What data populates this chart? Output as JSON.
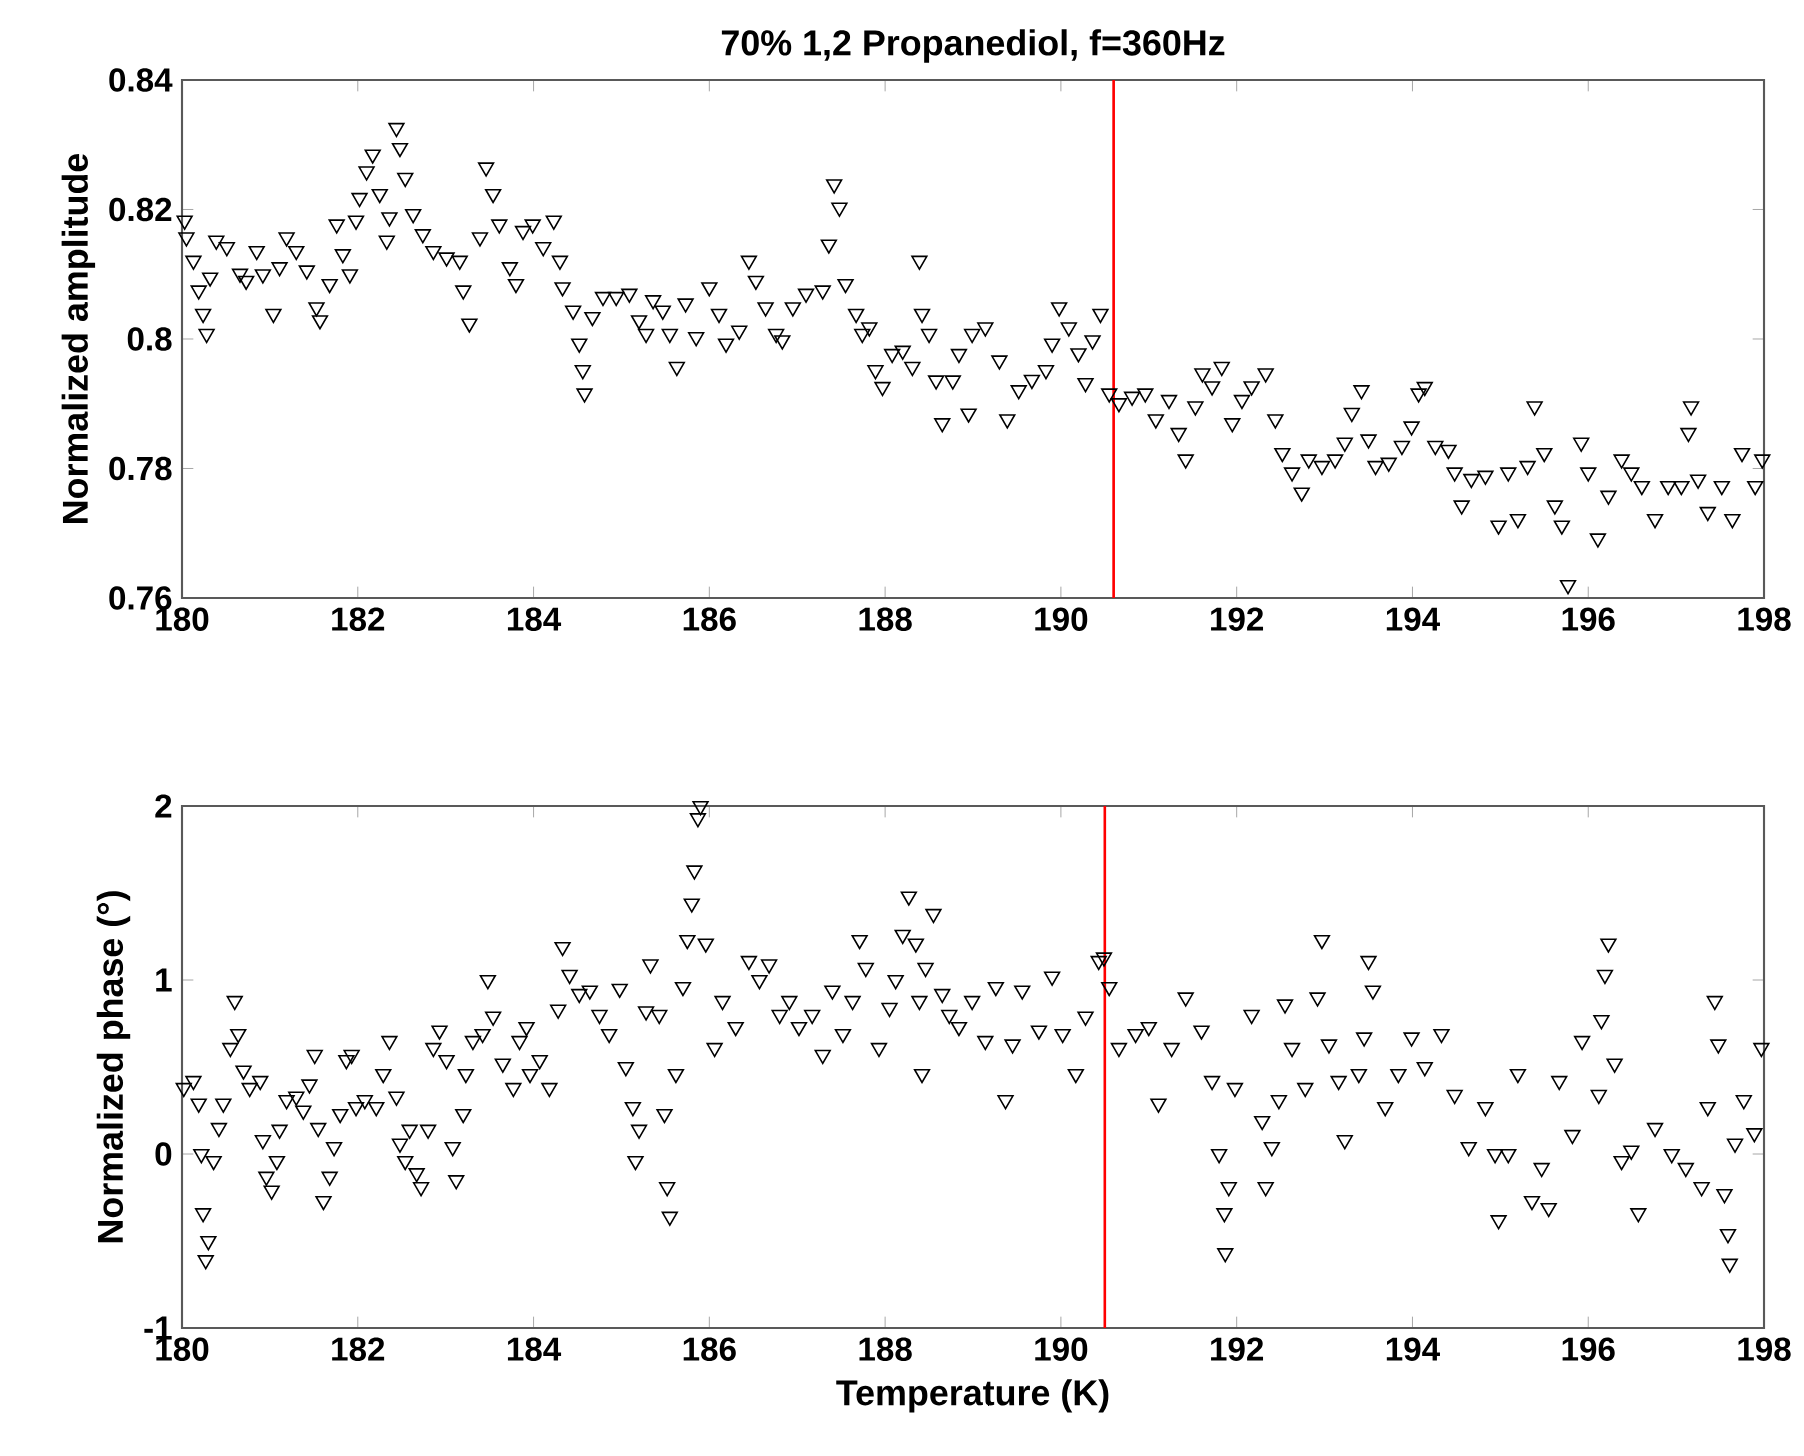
{
  "chart_data": [
    {
      "type": "scatter",
      "title": "70% 1,2 Propanediol, f=360Hz",
      "ylabel": "Normalized amplitude",
      "color": "#000000",
      "marker": "triangle",
      "x": [
        180.03,
        180.05,
        180.13,
        180.19,
        180.24,
        180.28,
        180.32,
        180.39,
        180.51,
        180.66,
        180.73,
        180.85,
        180.92,
        181.04,
        181.11,
        181.19,
        181.3,
        181.42,
        181.53,
        181.57,
        181.68,
        181.76,
        181.83,
        181.91,
        181.98,
        182.02,
        182.1,
        182.17,
        182.25,
        182.33,
        182.36,
        182.44,
        182.48,
        182.54,
        182.63,
        182.74,
        182.86,
        183.01,
        183.16,
        183.2,
        183.27,
        183.39,
        183.46,
        183.54,
        183.61,
        183.73,
        183.8,
        183.88,
        183.99,
        184.11,
        184.23,
        184.3,
        184.33,
        184.45,
        184.52,
        184.56,
        184.58,
        184.67,
        184.79,
        184.94,
        185.09,
        185.2,
        185.28,
        185.36,
        185.47,
        185.55,
        185.63,
        185.73,
        185.85,
        186.0,
        186.11,
        186.19,
        186.34,
        186.45,
        186.53,
        186.64,
        186.76,
        186.83,
        186.95,
        187.1,
        187.29,
        187.36,
        187.42,
        187.48,
        187.55,
        187.67,
        187.74,
        187.82,
        187.89,
        187.97,
        188.08,
        188.2,
        188.31,
        188.39,
        188.42,
        188.5,
        188.58,
        188.65,
        188.77,
        188.84,
        188.95,
        188.99,
        189.14,
        189.3,
        189.39,
        189.52,
        189.67,
        189.83,
        189.9,
        189.98,
        190.09,
        190.2,
        190.28,
        190.36,
        190.45,
        190.55,
        190.66,
        190.81,
        190.96,
        191.08,
        191.23,
        191.34,
        191.42,
        191.53,
        191.61,
        191.72,
        191.83,
        191.95,
        192.06,
        192.17,
        192.33,
        192.44,
        192.52,
        192.63,
        192.74,
        192.82,
        192.97,
        193.12,
        193.23,
        193.31,
        193.42,
        193.5,
        193.58,
        193.73,
        193.88,
        193.99,
        194.07,
        194.14,
        194.26,
        194.41,
        194.48,
        194.56,
        194.67,
        194.83,
        194.98,
        195.09,
        195.2,
        195.31,
        195.39,
        195.5,
        195.62,
        195.7,
        195.77,
        195.92,
        196.0,
        196.11,
        196.23,
        196.38,
        196.49,
        196.61,
        196.76,
        196.91,
        197.06,
        197.14,
        197.17,
        197.25,
        197.36,
        197.52,
        197.64,
        197.75,
        197.9,
        197.98
      ],
      "values": [
        0.8183,
        0.8157,
        0.8121,
        0.8075,
        0.8039,
        0.8008,
        0.8095,
        0.8152,
        0.8142,
        0.8101,
        0.809,
        0.8136,
        0.81,
        0.8039,
        0.8111,
        0.8157,
        0.8136,
        0.8106,
        0.8049,
        0.8029,
        0.8085,
        0.8177,
        0.8131,
        0.81,
        0.8183,
        0.8218,
        0.8259,
        0.8285,
        0.8224,
        0.8152,
        0.8188,
        0.8326,
        0.8295,
        0.8249,
        0.8193,
        0.8162,
        0.8136,
        0.8126,
        0.8121,
        0.8075,
        0.8024,
        0.8157,
        0.8265,
        0.8224,
        0.8177,
        0.8111,
        0.8085,
        0.8167,
        0.8177,
        0.8142,
        0.8183,
        0.8121,
        0.808,
        0.8044,
        0.7993,
        0.7952,
        0.7916,
        0.8034,
        0.8065,
        0.8065,
        0.807,
        0.8029,
        0.8008,
        0.806,
        0.8044,
        0.8008,
        0.7957,
        0.8055,
        0.8003,
        0.808,
        0.8039,
        0.7993,
        0.8013,
        0.8121,
        0.809,
        0.8049,
        0.8008,
        0.7998,
        0.8049,
        0.807,
        0.8075,
        0.8146,
        0.8239,
        0.8203,
        0.8085,
        0.8039,
        0.8008,
        0.8018,
        0.7952,
        0.7926,
        0.7977,
        0.7982,
        0.7957,
        0.8121,
        0.8039,
        0.8008,
        0.7936,
        0.787,
        0.7936,
        0.7977,
        0.7885,
        0.8008,
        0.8018,
        0.7967,
        0.7876,
        0.7921,
        0.7937,
        0.7952,
        0.7993,
        0.8049,
        0.8018,
        0.7978,
        0.7932,
        0.7998,
        0.8039,
        0.7916,
        0.7901,
        0.7911,
        0.7916,
        0.7876,
        0.7906,
        0.7855,
        0.7814,
        0.7896,
        0.7947,
        0.7927,
        0.7957,
        0.787,
        0.7906,
        0.7927,
        0.7947,
        0.7876,
        0.7824,
        0.7794,
        0.7763,
        0.7814,
        0.7804,
        0.7814,
        0.784,
        0.7886,
        0.7921,
        0.7845,
        0.7804,
        0.7809,
        0.7835,
        0.7865,
        0.7916,
        0.7926,
        0.7835,
        0.7829,
        0.7794,
        0.7743,
        0.7784,
        0.7789,
        0.7712,
        0.7794,
        0.7722,
        0.7804,
        0.7896,
        0.7824,
        0.7743,
        0.7712,
        0.762,
        0.784,
        0.7794,
        0.7692,
        0.7758,
        0.7814,
        0.7794,
        0.7773,
        0.7722,
        0.7773,
        0.7773,
        0.7855,
        0.7896,
        0.7783,
        0.7733,
        0.7773,
        0.7722,
        0.7824,
        0.7773,
        0.7814
      ],
      "xlim": [
        180,
        198
      ],
      "ylim": [
        0.76,
        0.84
      ],
      "xticks": [
        180,
        182,
        184,
        186,
        188,
        190,
        192,
        194,
        196,
        198
      ],
      "yticks": [
        0.76,
        0.78,
        0.8,
        0.82,
        0.84
      ],
      "ref_lines": [
        {
          "axis": "x",
          "value": 190.6,
          "color": "#ff0000"
        }
      ]
    },
    {
      "type": "scatter",
      "xlabel": "Temperature (K)",
      "ylabel": "Normalized phase (°)",
      "color": "#000000",
      "marker": "triangle",
      "x": [
        180.02,
        180.13,
        180.19,
        180.22,
        180.24,
        180.27,
        180.3,
        180.36,
        180.42,
        180.47,
        180.55,
        180.6,
        180.64,
        180.7,
        180.77,
        180.89,
        180.92,
        180.96,
        181.02,
        181.08,
        181.11,
        181.19,
        181.3,
        181.38,
        181.45,
        181.51,
        181.55,
        181.61,
        181.68,
        181.73,
        181.8,
        181.87,
        181.93,
        181.98,
        182.08,
        182.21,
        182.29,
        182.36,
        182.44,
        182.48,
        182.54,
        182.59,
        182.67,
        182.72,
        182.8,
        182.86,
        182.93,
        183.01,
        183.08,
        183.12,
        183.2,
        183.23,
        183.31,
        183.42,
        183.48,
        183.54,
        183.65,
        183.77,
        183.84,
        183.92,
        183.96,
        184.07,
        184.18,
        184.28,
        184.33,
        184.41,
        184.52,
        184.64,
        184.75,
        184.86,
        184.98,
        185.05,
        185.13,
        185.16,
        185.2,
        185.28,
        185.33,
        185.43,
        185.49,
        185.52,
        185.55,
        185.62,
        185.7,
        185.75,
        185.8,
        185.83,
        185.87,
        185.9,
        185.96,
        186.06,
        186.15,
        186.3,
        186.45,
        186.57,
        186.68,
        186.8,
        186.91,
        187.02,
        187.17,
        187.29,
        187.4,
        187.52,
        187.63,
        187.71,
        187.78,
        187.93,
        188.05,
        188.12,
        188.2,
        188.27,
        188.35,
        188.39,
        188.42,
        188.46,
        188.55,
        188.65,
        188.73,
        188.84,
        188.99,
        189.14,
        189.26,
        189.37,
        189.45,
        189.56,
        189.75,
        189.9,
        190.02,
        190.17,
        190.28,
        190.43,
        190.49,
        190.55,
        190.66,
        190.85,
        191.0,
        191.11,
        191.26,
        191.42,
        191.6,
        191.72,
        191.8,
        191.86,
        191.87,
        191.91,
        191.98,
        192.17,
        192.29,
        192.33,
        192.4,
        192.48,
        192.55,
        192.63,
        192.78,
        192.92,
        192.97,
        193.05,
        193.16,
        193.23,
        193.39,
        193.45,
        193.5,
        193.55,
        193.69,
        193.84,
        193.99,
        194.14,
        194.33,
        194.48,
        194.64,
        194.83,
        194.94,
        194.98,
        195.09,
        195.2,
        195.36,
        195.47,
        195.55,
        195.67,
        195.82,
        195.93,
        196.12,
        196.15,
        196.19,
        196.23,
        196.3,
        196.38,
        196.49,
        196.57,
        196.76,
        196.95,
        197.11,
        197.29,
        197.36,
        197.44,
        197.48,
        197.55,
        197.59,
        197.61,
        197.67,
        197.77,
        197.89,
        197.97
      ],
      "values": [
        0.38,
        0.42,
        0.29,
        0.0,
        -0.34,
        -0.61,
        -0.5,
        -0.04,
        0.15,
        0.29,
        0.61,
        0.88,
        0.69,
        0.48,
        0.38,
        0.42,
        0.08,
        -0.13,
        -0.21,
        -0.04,
        0.14,
        0.31,
        0.33,
        0.25,
        0.4,
        0.57,
        0.15,
        -0.27,
        -0.13,
        0.04,
        0.23,
        0.54,
        0.57,
        0.27,
        0.31,
        0.27,
        0.46,
        0.65,
        0.33,
        0.06,
        -0.04,
        0.14,
        -0.11,
        -0.19,
        0.14,
        0.61,
        0.71,
        0.54,
        0.04,
        -0.15,
        0.23,
        0.46,
        0.65,
        0.69,
        1.0,
        0.79,
        0.52,
        0.38,
        0.65,
        0.73,
        0.46,
        0.54,
        0.38,
        0.83,
        1.19,
        1.03,
        0.92,
        0.94,
        0.8,
        0.69,
        0.95,
        0.5,
        0.27,
        -0.04,
        0.14,
        0.82,
        1.09,
        0.8,
        0.23,
        -0.19,
        -0.36,
        0.46,
        0.96,
        1.23,
        1.44,
        1.63,
        1.93,
        2.0,
        1.21,
        0.61,
        0.88,
        0.73,
        1.11,
        1.0,
        1.09,
        0.8,
        0.88,
        0.73,
        0.8,
        0.57,
        0.94,
        0.69,
        0.88,
        1.23,
        1.07,
        0.61,
        0.84,
        1.0,
        1.26,
        1.48,
        1.21,
        0.88,
        0.46,
        1.07,
        1.38,
        0.92,
        0.8,
        0.73,
        0.88,
        0.65,
        0.96,
        0.31,
        0.63,
        0.94,
        0.71,
        1.02,
        0.69,
        0.46,
        0.79,
        1.11,
        1.13,
        0.96,
        0.61,
        0.69,
        0.73,
        0.29,
        0.61,
        0.9,
        0.71,
        0.42,
        0.0,
        -0.34,
        -0.57,
        -0.19,
        0.38,
        0.8,
        0.19,
        -0.19,
        0.04,
        0.31,
        0.86,
        0.61,
        0.38,
        0.9,
        1.23,
        0.63,
        0.42,
        0.08,
        0.46,
        0.67,
        1.11,
        0.94,
        0.27,
        0.46,
        0.67,
        0.5,
        0.69,
        0.34,
        0.04,
        0.27,
        0.0,
        -0.38,
        0.0,
        0.46,
        -0.27,
        -0.08,
        -0.31,
        0.42,
        0.11,
        0.65,
        0.34,
        0.77,
        1.03,
        1.21,
        0.52,
        -0.04,
        0.02,
        -0.34,
        0.15,
        0.0,
        -0.08,
        -0.19,
        0.27,
        0.88,
        0.63,
        -0.23,
        -0.46,
        -0.63,
        0.06,
        0.31,
        0.12,
        0.61
      ],
      "xlim": [
        180,
        198
      ],
      "ylim": [
        -1,
        2
      ],
      "xticks": [
        180,
        182,
        184,
        186,
        188,
        190,
        192,
        194,
        196,
        198
      ],
      "yticks": [
        -1,
        0,
        1,
        2
      ],
      "ref_lines": [
        {
          "axis": "x",
          "value": 190.5,
          "color": "#ff0000"
        }
      ]
    }
  ]
}
